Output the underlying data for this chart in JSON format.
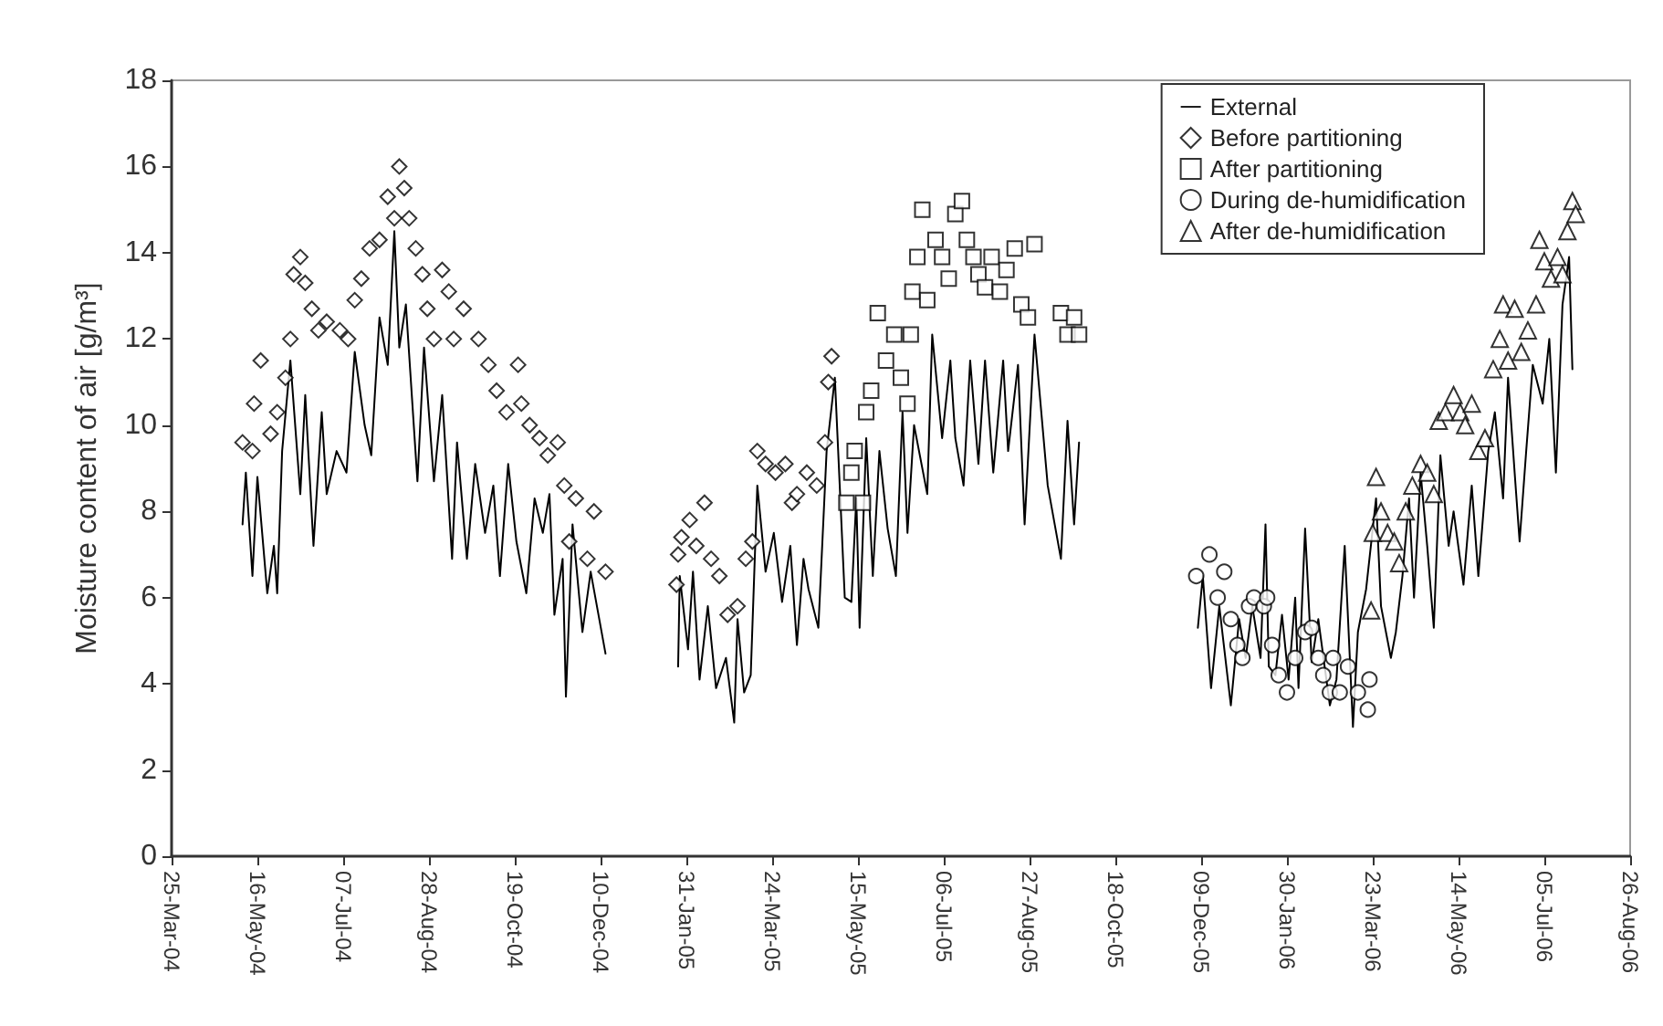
{
  "chart_data": {
    "type": "line",
    "ylabel": "Moisture content of air [g/m³]",
    "xlim": [
      "2004-03-25",
      "2006-08-26"
    ],
    "xticks": [
      {
        "value": "2004-03-25",
        "label": "25-Mar-04"
      },
      {
        "value": "2004-05-16",
        "label": "16-May-04"
      },
      {
        "value": "2004-07-07",
        "label": "07-Jul-04"
      },
      {
        "value": "2004-08-28",
        "label": "28-Aug-04"
      },
      {
        "value": "2004-10-19",
        "label": "19-Oct-04"
      },
      {
        "value": "2004-12-10",
        "label": "10-Dec-04"
      },
      {
        "value": "2005-01-31",
        "label": "31-Jan-05"
      },
      {
        "value": "2005-03-24",
        "label": "24-Mar-05"
      },
      {
        "value": "2005-05-15",
        "label": "15-May-05"
      },
      {
        "value": "2005-07-06",
        "label": "06-Jul-05"
      },
      {
        "value": "2005-08-27",
        "label": "27-Aug-05"
      },
      {
        "value": "2005-10-18",
        "label": "18-Oct-05"
      },
      {
        "value": "2005-12-09",
        "label": "09-Dec-05"
      },
      {
        "value": "2006-01-30",
        "label": "30-Jan-06"
      },
      {
        "value": "2006-03-23",
        "label": "23-Mar-06"
      },
      {
        "value": "2006-05-14",
        "label": "14-May-06"
      },
      {
        "value": "2006-07-05",
        "label": "05-Jul-06"
      },
      {
        "value": "2006-08-26",
        "label": "26-Aug-06"
      }
    ],
    "ylim": [
      0,
      18
    ],
    "yticks": [
      0,
      2,
      4,
      6,
      8,
      10,
      12,
      14,
      16,
      18
    ],
    "grid": false,
    "legend": "top right",
    "series": [
      {
        "name": "External",
        "marker": "none",
        "line_style": "solid",
        "color": "#000000",
        "x": [
          "2004-05-07",
          "2004-05-09",
          "2004-05-13",
          "2004-05-16",
          "2004-05-22",
          "2004-05-26",
          "2004-05-28",
          "2004-05-31",
          "2004-06-05",
          "2004-06-11",
          "2004-06-14",
          "2004-06-19",
          "2004-06-24",
          "2004-06-27",
          "2004-07-03",
          "2004-07-09",
          "2004-07-14",
          "2004-07-20",
          "2004-07-24",
          "2004-07-29",
          "2004-08-03",
          "2004-08-07",
          "2004-08-10",
          "2004-08-14",
          "2004-08-21",
          "2004-08-25",
          "2004-08-31",
          "2004-09-05",
          "2004-09-11",
          "2004-09-14",
          "2004-09-20",
          "2004-09-25",
          "2004-10-01",
          "2004-10-06",
          "2004-10-10",
          "2004-10-15",
          "2004-10-20",
          "2004-10-26",
          "2004-10-31",
          "2004-11-05",
          "2004-11-09",
          "2004-11-12",
          "2004-11-17",
          "2004-11-19",
          "2004-11-23",
          "2004-11-29",
          "2004-12-04",
          "2004-12-13",
          "2004-12-31",
          "2005-01-26",
          "2005-01-27",
          "2005-02-01",
          "2005-02-04",
          "2005-02-08",
          "2005-02-13",
          "2005-02-18",
          "2005-02-24",
          "2005-03-01",
          "2005-03-03",
          "2005-03-07",
          "2005-03-11",
          "2005-03-15",
          "2005-03-20",
          "2005-03-25",
          "2005-03-30",
          "2005-04-04",
          "2005-04-08",
          "2005-04-12",
          "2005-04-15",
          "2005-04-21",
          "2005-04-26",
          "2005-05-01",
          "2005-05-07",
          "2005-05-11",
          "2005-05-14",
          "2005-05-16",
          "2005-05-20",
          "2005-05-24",
          "2005-05-28",
          "2005-06-02",
          "2005-06-07",
          "2005-06-11",
          "2005-06-14",
          "2005-06-18",
          "2005-06-26",
          "2005-06-29",
          "2005-07-05",
          "2005-07-10",
          "2005-07-13",
          "2005-07-18",
          "2005-07-22",
          "2005-07-27",
          "2005-07-31",
          "2005-08-05",
          "2005-08-11",
          "2005-08-14",
          "2005-08-20",
          "2005-08-24",
          "2005-08-30",
          "2005-09-07",
          "2005-09-15",
          "2005-09-19",
          "2005-09-23",
          "2005-09-26",
          "2005-11-01",
          "2005-12-07",
          "2005-12-10",
          "2005-12-15",
          "2005-12-20",
          "2005-12-27",
          "2006-01-01",
          "2006-01-05",
          "2006-01-09",
          "2006-01-14",
          "2006-01-17",
          "2006-01-19",
          "2006-01-23",
          "2006-01-27",
          "2006-01-31",
          "2006-02-04",
          "2006-02-06",
          "2006-02-10",
          "2006-02-14",
          "2006-02-18",
          "2006-02-25",
          "2006-03-01",
          "2006-03-06",
          "2006-03-11",
          "2006-03-14",
          "2006-03-19",
          "2006-03-25",
          "2006-03-28",
          "2006-04-03",
          "2006-04-06",
          "2006-04-10",
          "2006-04-14",
          "2006-04-17",
          "2006-04-21",
          "2006-04-25",
          "2006-04-29",
          "2006-05-03",
          "2006-05-08",
          "2006-05-11",
          "2006-05-17",
          "2006-05-22",
          "2006-05-26",
          "2006-06-01",
          "2006-06-05",
          "2006-06-10",
          "2006-06-13",
          "2006-06-17",
          "2006-06-20",
          "2006-06-24",
          "2006-06-28",
          "2006-07-04",
          "2006-07-08",
          "2006-07-12",
          "2006-07-16",
          "2006-07-20",
          "2006-07-22"
        ],
        "values": [
          7.7,
          8.9,
          6.5,
          8.8,
          6.1,
          7.2,
          6.1,
          9.4,
          11.5,
          8.4,
          10.7,
          7.2,
          10.3,
          8.4,
          9.4,
          8.9,
          11.7,
          10.0,
          9.3,
          12.5,
          11.4,
          14.5,
          11.8,
          12.8,
          8.7,
          11.8,
          8.7,
          10.7,
          6.9,
          9.6,
          6.9,
          9.1,
          7.5,
          8.6,
          6.5,
          9.1,
          7.3,
          6.1,
          8.3,
          7.5,
          8.4,
          5.6,
          6.9,
          3.7,
          7.7,
          5.2,
          6.6,
          4.7,
          null,
          4.4,
          6.5,
          4.8,
          6.6,
          4.1,
          5.8,
          3.9,
          4.6,
          3.1,
          5.5,
          3.8,
          4.2,
          8.6,
          6.6,
          7.5,
          5.9,
          7.2,
          4.9,
          6.9,
          6.2,
          5.3,
          9.4,
          11.1,
          6.0,
          5.9,
          8.3,
          5.3,
          9.7,
          6.5,
          9.4,
          7.6,
          6.5,
          10.3,
          7.5,
          10.0,
          8.4,
          12.1,
          9.7,
          11.5,
          9.7,
          8.6,
          11.5,
          9.1,
          11.5,
          8.9,
          11.5,
          9.4,
          11.4,
          7.7,
          12.1,
          8.6,
          6.9,
          10.1,
          7.7,
          9.6,
          null,
          5.3,
          6.5,
          3.9,
          5.8,
          3.5,
          5.5,
          4.6,
          5.8,
          4.6,
          7.7,
          4.4,
          4.2,
          5.6,
          4.1,
          6.0,
          3.9,
          7.6,
          4.5,
          5.5,
          3.5,
          4.1,
          7.2,
          3.0,
          5.2,
          6.2,
          8.3,
          5.8,
          4.6,
          5.2,
          6.5,
          8.3,
          6.0,
          8.9,
          7.2,
          5.3,
          9.3,
          7.2,
          8.0,
          6.3,
          8.6,
          6.5,
          9.4,
          10.3,
          8.3,
          11.1,
          8.9,
          7.3,
          9.4,
          11.4,
          10.5,
          12.0,
          8.9,
          12.8,
          13.9,
          11.3
        ]
      },
      {
        "name": "Before partitioning",
        "type": "scatter",
        "marker": "diamond",
        "color": "#000000",
        "x": [
          "2004-05-07",
          "2004-05-13",
          "2004-05-14",
          "2004-05-18",
          "2004-05-24",
          "2004-05-28",
          "2004-06-02",
          "2004-06-05",
          "2004-06-07",
          "2004-06-11",
          "2004-06-14",
          "2004-06-18",
          "2004-06-22",
          "2004-06-27",
          "2004-07-05",
          "2004-07-10",
          "2004-07-14",
          "2004-07-18",
          "2004-07-23",
          "2004-07-29",
          "2004-08-03",
          "2004-08-07",
          "2004-08-10",
          "2004-08-13",
          "2004-08-16",
          "2004-08-20",
          "2004-08-24",
          "2004-08-27",
          "2004-08-31",
          "2004-09-05",
          "2004-09-09",
          "2004-09-12",
          "2004-09-18",
          "2004-09-27",
          "2004-10-03",
          "2004-10-08",
          "2004-10-14",
          "2004-10-21",
          "2004-10-23",
          "2004-10-28",
          "2004-11-03",
          "2004-11-08",
          "2004-11-14",
          "2004-11-18",
          "2004-11-21",
          "2004-11-25",
          "2004-12-02",
          "2004-12-06",
          "2004-12-13",
          "2005-01-25",
          "2005-01-26",
          "2005-01-28",
          "2005-02-02",
          "2005-02-06",
          "2005-02-11",
          "2005-02-15",
          "2005-02-20",
          "2005-02-25",
          "2005-03-03",
          "2005-03-08",
          "2005-03-12",
          "2005-03-15",
          "2005-03-20",
          "2005-03-26",
          "2005-04-01",
          "2005-04-05",
          "2005-04-08",
          "2005-04-14",
          "2005-04-20",
          "2005-04-25",
          "2005-04-27",
          "2005-04-29"
        ],
        "values": [
          9.6,
          9.4,
          10.5,
          11.5,
          9.8,
          10.3,
          11.1,
          12.0,
          13.5,
          13.9,
          13.3,
          12.7,
          12.2,
          12.4,
          12.2,
          12.0,
          12.9,
          13.4,
          14.1,
          14.3,
          15.3,
          14.8,
          16.0,
          15.5,
          14.8,
          14.1,
          13.5,
          12.7,
          12.0,
          13.6,
          13.1,
          12.0,
          12.7,
          12.0,
          11.4,
          10.8,
          10.3,
          11.4,
          10.5,
          10.0,
          9.7,
          9.3,
          9.6,
          8.6,
          7.3,
          8.3,
          6.9,
          8.0,
          6.6,
          6.3,
          7.0,
          7.4,
          7.8,
          7.2,
          8.2,
          6.9,
          6.5,
          5.6,
          5.8,
          6.9,
          7.3,
          9.4,
          9.1,
          8.9,
          9.1,
          8.2,
          8.4,
          8.9,
          8.6,
          9.6,
          11.0,
          11.6
        ]
      },
      {
        "name": "After partitioning",
        "type": "scatter",
        "marker": "square",
        "color": "#000000",
        "x": [
          "2005-05-08",
          "2005-05-11",
          "2005-05-13",
          "2005-05-18",
          "2005-05-20",
          "2005-05-23",
          "2005-05-27",
          "2005-06-01",
          "2005-06-06",
          "2005-06-10",
          "2005-06-14",
          "2005-06-16",
          "2005-06-17",
          "2005-06-20",
          "2005-06-23",
          "2005-06-26",
          "2005-07-01",
          "2005-07-05",
          "2005-07-09",
          "2005-07-13",
          "2005-07-17",
          "2005-07-20",
          "2005-07-24",
          "2005-07-27",
          "2005-07-31",
          "2005-08-04",
          "2005-08-09",
          "2005-08-13",
          "2005-08-18",
          "2005-08-22",
          "2005-08-26",
          "2005-08-30",
          "2005-09-15",
          "2005-09-19",
          "2005-09-23",
          "2005-09-26"
        ],
        "values": [
          8.2,
          8.9,
          9.4,
          8.2,
          10.3,
          10.8,
          12.6,
          11.5,
          12.1,
          11.1,
          10.5,
          12.1,
          13.1,
          13.9,
          15.0,
          12.9,
          14.3,
          13.9,
          13.4,
          14.9,
          15.2,
          14.3,
          13.9,
          13.5,
          13.2,
          13.9,
          13.1,
          13.6,
          14.1,
          12.8,
          12.5,
          14.2,
          12.6,
          12.1,
          12.5,
          12.1
        ]
      },
      {
        "name": "During de-humidification",
        "type": "scatter",
        "marker": "circle",
        "color": "#000000",
        "x": [
          "2005-12-06",
          "2005-12-14",
          "2005-12-19",
          "2005-12-23",
          "2005-12-27",
          "2005-12-31",
          "2006-01-03",
          "2006-01-07",
          "2006-01-10",
          "2006-01-16",
          "2006-01-18",
          "2006-01-21",
          "2006-01-25",
          "2006-01-30",
          "2006-02-04",
          "2006-02-10",
          "2006-02-14",
          "2006-02-18",
          "2006-02-21",
          "2006-02-25",
          "2006-02-27",
          "2006-03-03",
          "2006-03-08",
          "2006-03-14",
          "2006-03-20",
          "2006-03-21"
        ],
        "values": [
          6.5,
          7.0,
          6.0,
          6.6,
          5.5,
          4.9,
          4.6,
          5.8,
          6.0,
          5.8,
          6.0,
          4.9,
          4.2,
          3.8,
          4.6,
          5.2,
          5.3,
          4.6,
          4.2,
          3.8,
          4.6,
          3.8,
          4.4,
          3.8,
          3.4,
          4.1
        ]
      },
      {
        "name": "After de-humidification",
        "type": "scatter",
        "marker": "triangle",
        "color": "#000000",
        "x": [
          "2006-03-22",
          "2006-03-23",
          "2006-03-25",
          "2006-03-28",
          "2006-04-01",
          "2006-04-05",
          "2006-04-08",
          "2006-04-12",
          "2006-04-16",
          "2006-04-21",
          "2006-04-25",
          "2006-04-29",
          "2006-05-02",
          "2006-05-06",
          "2006-05-11",
          "2006-05-15",
          "2006-05-18",
          "2006-05-22",
          "2006-05-26",
          "2006-05-30",
          "2006-06-04",
          "2006-06-08",
          "2006-06-10",
          "2006-06-13",
          "2006-06-17",
          "2006-06-21",
          "2006-06-25",
          "2006-06-30",
          "2006-07-02",
          "2006-07-05",
          "2006-07-09",
          "2006-07-13",
          "2006-07-16",
          "2006-07-19",
          "2006-07-22",
          "2006-07-24"
        ],
        "values": [
          5.7,
          7.5,
          8.8,
          8.0,
          7.5,
          7.3,
          6.8,
          8.0,
          8.6,
          9.1,
          8.9,
          8.4,
          10.1,
          10.3,
          10.7,
          10.3,
          10.0,
          10.5,
          9.4,
          9.7,
          11.3,
          12.0,
          12.8,
          11.5,
          12.7,
          11.7,
          12.2,
          12.8,
          14.3,
          13.8,
          13.4,
          13.9,
          13.5,
          14.5,
          15.2,
          14.9
        ]
      }
    ]
  }
}
